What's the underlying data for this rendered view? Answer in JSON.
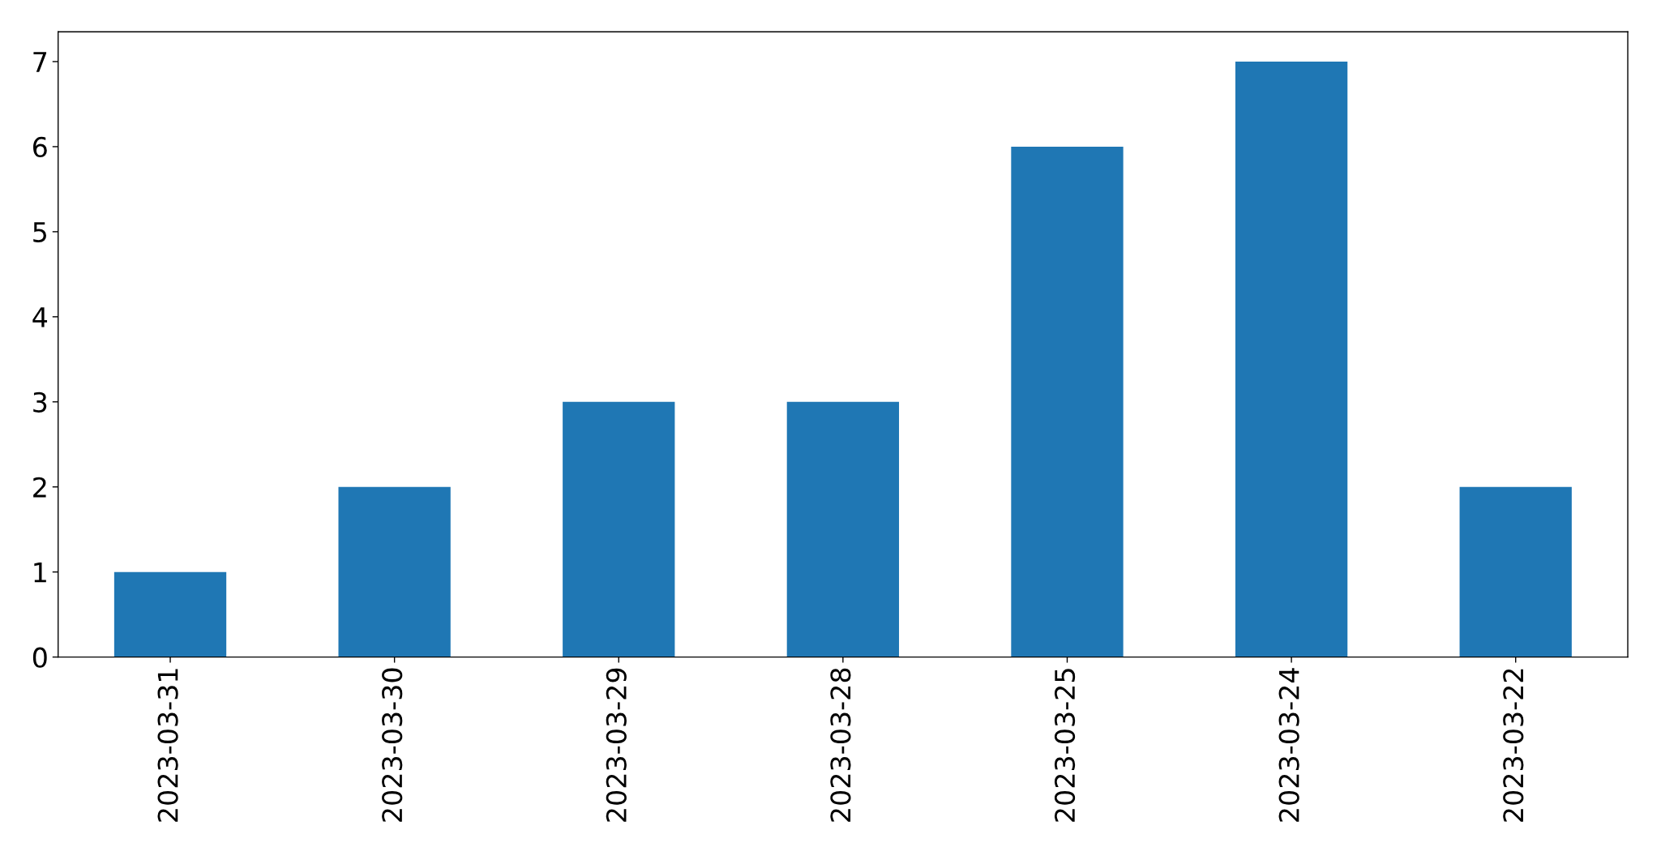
{
  "chart_data": {
    "type": "bar",
    "categories": [
      "2023-03-31",
      "2023-03-30",
      "2023-03-29",
      "2023-03-28",
      "2023-03-25",
      "2023-03-24",
      "2023-03-22"
    ],
    "values": [
      1,
      2,
      3,
      3,
      6,
      7,
      2
    ],
    "color": "#1f77b4",
    "ylim": [
      0,
      7.35
    ],
    "yticks": [
      0,
      1,
      2,
      3,
      4,
      5,
      6,
      7
    ]
  }
}
